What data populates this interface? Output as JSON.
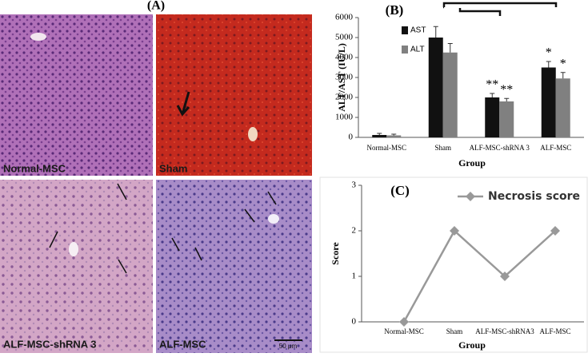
{
  "panel_a": {
    "label": "(A)",
    "images": [
      {
        "label": "Normal-MSC"
      },
      {
        "label": "Sham"
      },
      {
        "label": "ALF-MSC-shRNA 3"
      },
      {
        "label": "ALF-MSC"
      }
    ],
    "scale_bar": "50 μm"
  },
  "chart_data": [
    {
      "type": "bar",
      "panel_label": "(B)",
      "ylabel": "ALT/AST (IU/L)",
      "xlabel": "Group",
      "categories": [
        "Normal-MSC",
        "Sham",
        "ALF-MSC-shRNA 3",
        "ALF-MSC"
      ],
      "series": [
        {
          "name": "AST",
          "color": "#111111",
          "values": [
            120,
            5000,
            2000,
            3500
          ],
          "errors": [
            80,
            550,
            200,
            300
          ],
          "significance": [
            null,
            null,
            "**",
            "*"
          ]
        },
        {
          "name": "ALT",
          "color": "#808080",
          "values": [
            100,
            4250,
            1800,
            2950
          ],
          "errors": [
            60,
            450,
            150,
            300
          ],
          "significance": [
            null,
            null,
            "**",
            "*"
          ]
        }
      ],
      "ylim": [
        0,
        6000
      ],
      "yticks": [
        0,
        1000,
        2000,
        3000,
        4000,
        5000,
        6000
      ]
    },
    {
      "type": "line",
      "panel_label": "(C)",
      "ylabel": "Score",
      "xlabel": "Group",
      "categories": [
        "Normal-MSC",
        "Sham",
        "ALF-MSC-shRNA3",
        "ALF-MSC"
      ],
      "series": [
        {
          "name": "Necrosis score",
          "color": "#999999",
          "values": [
            0,
            2,
            1,
            2
          ]
        }
      ],
      "ylim": [
        0,
        3
      ],
      "yticks": [
        0,
        1,
        2,
        3
      ]
    }
  ]
}
